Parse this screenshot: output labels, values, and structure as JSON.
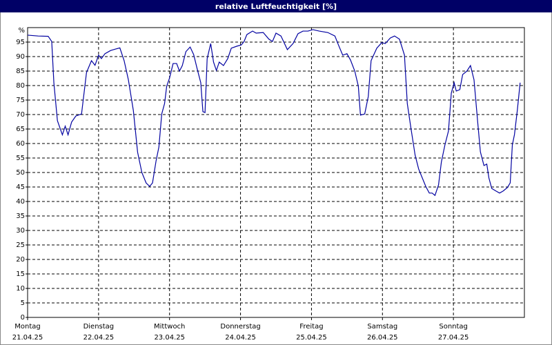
{
  "chart_data": {
    "type": "line",
    "title": "relative Luftfeuchtigkeit [%]",
    "ylabel": "%",
    "xlim": [
      0,
      7
    ],
    "ylim": [
      0,
      100
    ],
    "yticks": [
      0,
      5,
      10,
      15,
      20,
      25,
      30,
      35,
      40,
      45,
      50,
      55,
      60,
      65,
      70,
      75,
      80,
      85,
      90,
      95
    ],
    "xticks": [
      {
        "value": 0,
        "label": "Montag"
      },
      {
        "value": 1,
        "label": "Dienstag"
      },
      {
        "value": 2,
        "label": "Mittwoch"
      },
      {
        "value": 3,
        "label": "Donnerstag"
      },
      {
        "value": 4,
        "label": "Freitag"
      },
      {
        "value": 5,
        "label": "Samstag"
      },
      {
        "value": 6,
        "label": "Sonntag"
      }
    ],
    "xtick_dates": [
      "21.04.25",
      "22.04.25",
      "23.04.25",
      "24.04.25",
      "25.04.25",
      "26.04.25",
      "27.04.25"
    ],
    "grid": true,
    "x": [
      0,
      0.15,
      0.29,
      0.34,
      0.37,
      0.42,
      0.49,
      0.53,
      0.57,
      0.62,
      0.68,
      0.76,
      0.83,
      0.9,
      0.95,
      1.0,
      1.04,
      1.09,
      1.17,
      1.24,
      1.3,
      1.36,
      1.42,
      1.49,
      1.55,
      1.61,
      1.67,
      1.72,
      1.76,
      1.81,
      1.85,
      1.89,
      1.93,
      1.96,
      2.0,
      2.05,
      2.1,
      2.14,
      2.18,
      2.23,
      2.29,
      2.34,
      2.39,
      2.44,
      2.47,
      2.5,
      2.53,
      2.58,
      2.62,
      2.66,
      2.7,
      2.76,
      2.82,
      2.87,
      2.95,
      3.01,
      3.05,
      3.09,
      3.17,
      3.22,
      3.32,
      3.4,
      3.45,
      3.5,
      3.57,
      3.66,
      3.74,
      3.81,
      3.88,
      3.95,
      4.02,
      4.11,
      4.23,
      4.33,
      4.38,
      4.44,
      4.5,
      4.55,
      4.61,
      4.66,
      4.69,
      4.75,
      4.8,
      4.84,
      4.92,
      4.99,
      5.04,
      5.11,
      5.17,
      5.24,
      5.31,
      5.35,
      5.4,
      5.46,
      5.51,
      5.61,
      5.66,
      5.7,
      5.74,
      5.79,
      5.83,
      5.88,
      5.93,
      5.97,
      6.01,
      6.04,
      6.09,
      6.13,
      6.19,
      6.24,
      6.29,
      6.34,
      6.38,
      6.43,
      6.47,
      6.5,
      6.54,
      6.6,
      6.65,
      6.7,
      6.76,
      6.8,
      6.83,
      6.86,
      6.9,
      6.94
    ],
    "series": [
      {
        "color": "#0000a0",
        "values": [
          97.4,
          97.1,
          97,
          95.2,
          81,
          67.9,
          63,
          66,
          63,
          67.4,
          69.5,
          70.2,
          84.5,
          88.6,
          87,
          90.5,
          89.3,
          91,
          92.1,
          92.6,
          93,
          88.6,
          82,
          71.4,
          57,
          50,
          46.4,
          45.2,
          46.4,
          54,
          58.8,
          70.2,
          73.8,
          79.8,
          82.6,
          87.6,
          87.6,
          85,
          86.9,
          91.7,
          93.3,
          90.7,
          85.7,
          81,
          71,
          70.7,
          89.3,
          94.5,
          88.1,
          85.2,
          88.1,
          86.9,
          89.3,
          92.9,
          93.6,
          94,
          95.2,
          97.6,
          98.8,
          98.1,
          98.3,
          96,
          95.2,
          98.1,
          97.1,
          92.4,
          94.5,
          97.9,
          98.8,
          98.8,
          99.3,
          98.8,
          98.3,
          97.1,
          94,
          90.5,
          91,
          88.8,
          85,
          79.8,
          69.8,
          70.2,
          76.2,
          88.6,
          92.9,
          94.8,
          94.5,
          96.4,
          97.1,
          96,
          90.5,
          73.8,
          65.5,
          56,
          51.2,
          45.2,
          42.9,
          42.9,
          42.1,
          45.7,
          53.6,
          59.5,
          64.3,
          77.4,
          81,
          78.1,
          78.6,
          83.8,
          85,
          86.9,
          82,
          67.9,
          57.1,
          52.4,
          52.9,
          48.1,
          44.5,
          43.6,
          42.9,
          43.6,
          44.8,
          46.4,
          59.5,
          63.1,
          71.4,
          81
        ]
      }
    ]
  }
}
